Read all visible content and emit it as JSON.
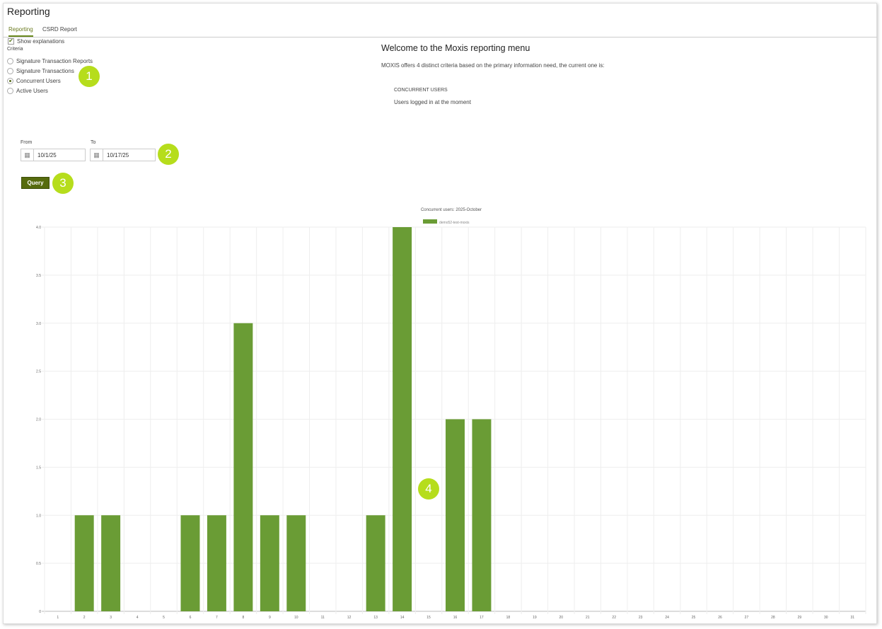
{
  "header": {
    "title": "Reporting"
  },
  "tabs": [
    {
      "label": "Reporting",
      "active": true
    },
    {
      "label": "CSRD Report",
      "active": false
    }
  ],
  "show_explanations": {
    "label": "Show explanations",
    "checked": true
  },
  "criteria": {
    "label": "Criteria",
    "options": [
      {
        "label": "Signature Transaction Reports",
        "selected": false
      },
      {
        "label": "Signature Transactions",
        "selected": false
      },
      {
        "label": "Concurrent Users",
        "selected": true
      },
      {
        "label": "Active Users",
        "selected": false
      }
    ]
  },
  "explanation": {
    "heading": "Welcome to the Moxis reporting menu",
    "intro": "MOXIS offers 4 distinct criteria based on the primary information need, the current one is:",
    "criterion_title": "CONCURRENT USERS",
    "criterion_desc": "Users logged in at the moment"
  },
  "filters": {
    "from_label": "From",
    "from_value": "10/1/25",
    "to_label": "To",
    "to_value": "10/17/25",
    "icon": "calendar-icon"
  },
  "query_label": "Query",
  "badges": [
    "1",
    "2",
    "3",
    "4"
  ],
  "colors": {
    "accent": "#6a9c35",
    "badge": "#b6dd1c",
    "button": "#566b0e"
  },
  "chart_data": {
    "type": "bar",
    "title": "Concurrent users:  2025-October",
    "legend": [
      {
        "name": "demo52-test-moxis",
        "color": "#6a9c35"
      }
    ],
    "legend_position": "top-center",
    "categories": [
      "1",
      "2",
      "3",
      "4",
      "5",
      "6",
      "7",
      "8",
      "9",
      "10",
      "11",
      "12",
      "13",
      "14",
      "15",
      "16",
      "17",
      "18",
      "19",
      "20",
      "21",
      "22",
      "23",
      "24",
      "25",
      "26",
      "27",
      "28",
      "29",
      "30",
      "31"
    ],
    "series": [
      {
        "name": "demo52-test-moxis",
        "values": [
          0,
          1,
          1,
          0,
          0,
          1,
          1,
          3,
          1,
          1,
          0,
          0,
          1,
          4,
          0,
          2,
          2,
          0,
          0,
          0,
          0,
          0,
          0,
          0,
          0,
          0,
          0,
          0,
          0,
          0,
          0
        ]
      }
    ],
    "yticks": [
      "0",
      "0.5",
      "1.0",
      "1.5",
      "2.0",
      "2.5",
      "3.0",
      "3.5",
      "4.0"
    ],
    "ylim": [
      0,
      4
    ],
    "grid": true,
    "xlabel": "",
    "ylabel": ""
  }
}
